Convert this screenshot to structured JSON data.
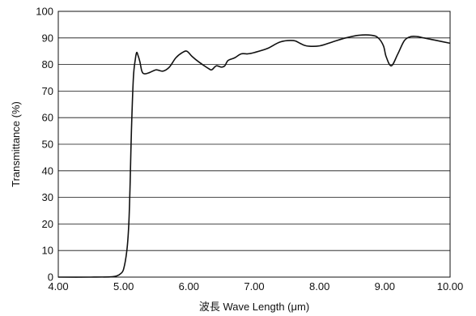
{
  "chart_data": {
    "type": "line",
    "xlabel": "波長 Wave Length (μm)",
    "ylabel": "Transmittance (%)",
    "xlim": [
      4.0,
      10.0
    ],
    "ylim": [
      0,
      100
    ],
    "x_ticks": [
      "4.00",
      "5.00",
      "6.00",
      "7.00",
      "8.00",
      "9.00",
      "10.00"
    ],
    "y_ticks": [
      "0",
      "10",
      "20",
      "30",
      "40",
      "50",
      "60",
      "70",
      "80",
      "90",
      "100"
    ],
    "grid": "horizontal",
    "series": [
      {
        "color": "#111111",
        "x": [
          4.0,
          4.5,
          4.8,
          4.9,
          4.95,
          5.0,
          5.05,
          5.08,
          5.1,
          5.12,
          5.15,
          5.18,
          5.2,
          5.22,
          5.25,
          5.28,
          5.32,
          5.4,
          5.5,
          5.6,
          5.7,
          5.8,
          5.9,
          5.97,
          6.05,
          6.15,
          6.3,
          6.35,
          6.42,
          6.5,
          6.55,
          6.6,
          6.7,
          6.8,
          6.9,
          7.0,
          7.2,
          7.4,
          7.6,
          7.7,
          7.8,
          8.0,
          8.2,
          8.4,
          8.6,
          8.8,
          8.9,
          8.98,
          9.02,
          9.1,
          9.2,
          9.3,
          9.4,
          9.5,
          9.6,
          9.8,
          10.0
        ],
        "y": [
          0,
          0,
          0.1,
          0.5,
          1.2,
          3,
          10,
          20,
          35,
          55,
          75,
          82,
          84.5,
          83.5,
          81,
          77.5,
          76.5,
          77,
          78,
          77.5,
          79,
          82.5,
          84.5,
          85,
          83,
          81,
          78.5,
          78,
          79.5,
          79,
          79.5,
          81.5,
          82.5,
          84,
          84,
          84.5,
          86,
          88.5,
          89,
          88,
          87,
          87,
          88.5,
          90,
          91,
          91,
          90,
          87,
          83,
          79.5,
          84,
          89,
          90.5,
          90.5,
          90,
          89,
          88
        ]
      }
    ]
  }
}
